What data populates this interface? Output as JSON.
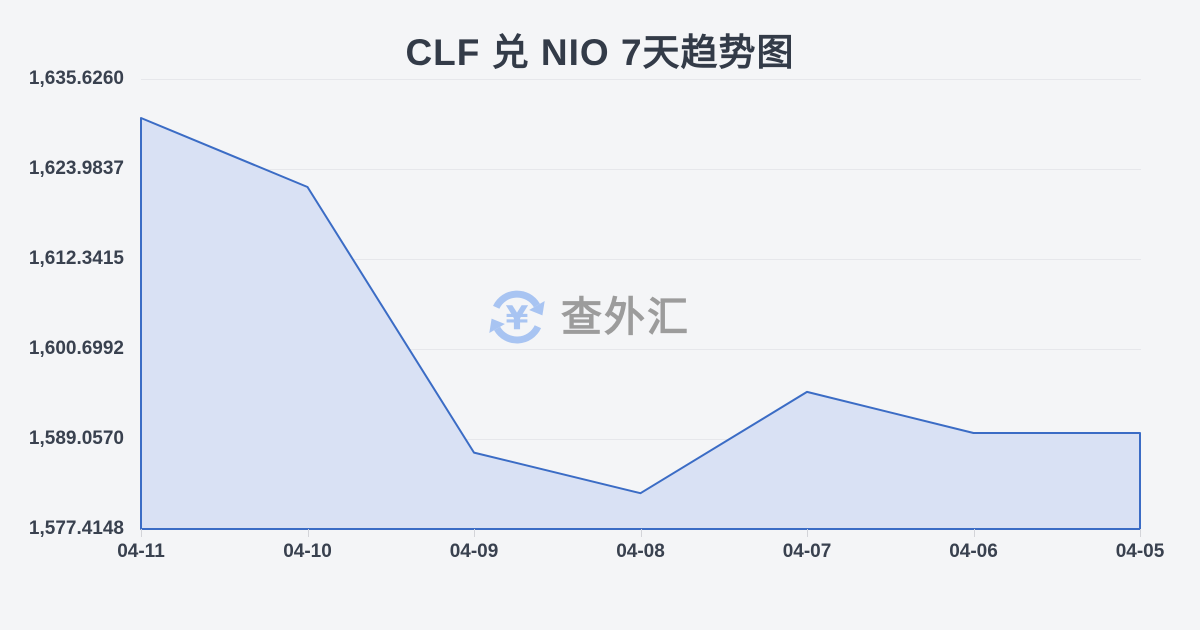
{
  "title": "CLF 兑 NIO 7天趋势图",
  "watermark": {
    "icon": "currency-exchange-icon",
    "icon_color": "#a8c4f2",
    "text": "查外汇",
    "text_color": "#9c9c9c"
  },
  "colors": {
    "background": "#f4f5f7",
    "line": "#3b6cc5",
    "fill": "#d9e1f4",
    "gridline": "#e6e7eb",
    "axis_text": "#39414f",
    "title_text": "#333b48"
  },
  "chart_data": {
    "type": "area",
    "title": "CLF 兑 NIO 7天趋势图",
    "x": [
      "04-11",
      "04-10",
      "04-09",
      "04-08",
      "04-07",
      "04-06",
      "04-05"
    ],
    "values": [
      1630.58,
      1621.65,
      1587.3,
      1582.05,
      1595.15,
      1589.83,
      1589.83
    ],
    "y_tick_labels": [
      "1,635.6260",
      "1,623.9837",
      "1,612.3415",
      "1,600.6992",
      "1,589.0570",
      "1,577.4148"
    ],
    "ylim": [
      1577.4148,
      1635.626
    ],
    "xlabel": "",
    "ylabel": "",
    "grid": "horizontal",
    "legend": "none"
  }
}
